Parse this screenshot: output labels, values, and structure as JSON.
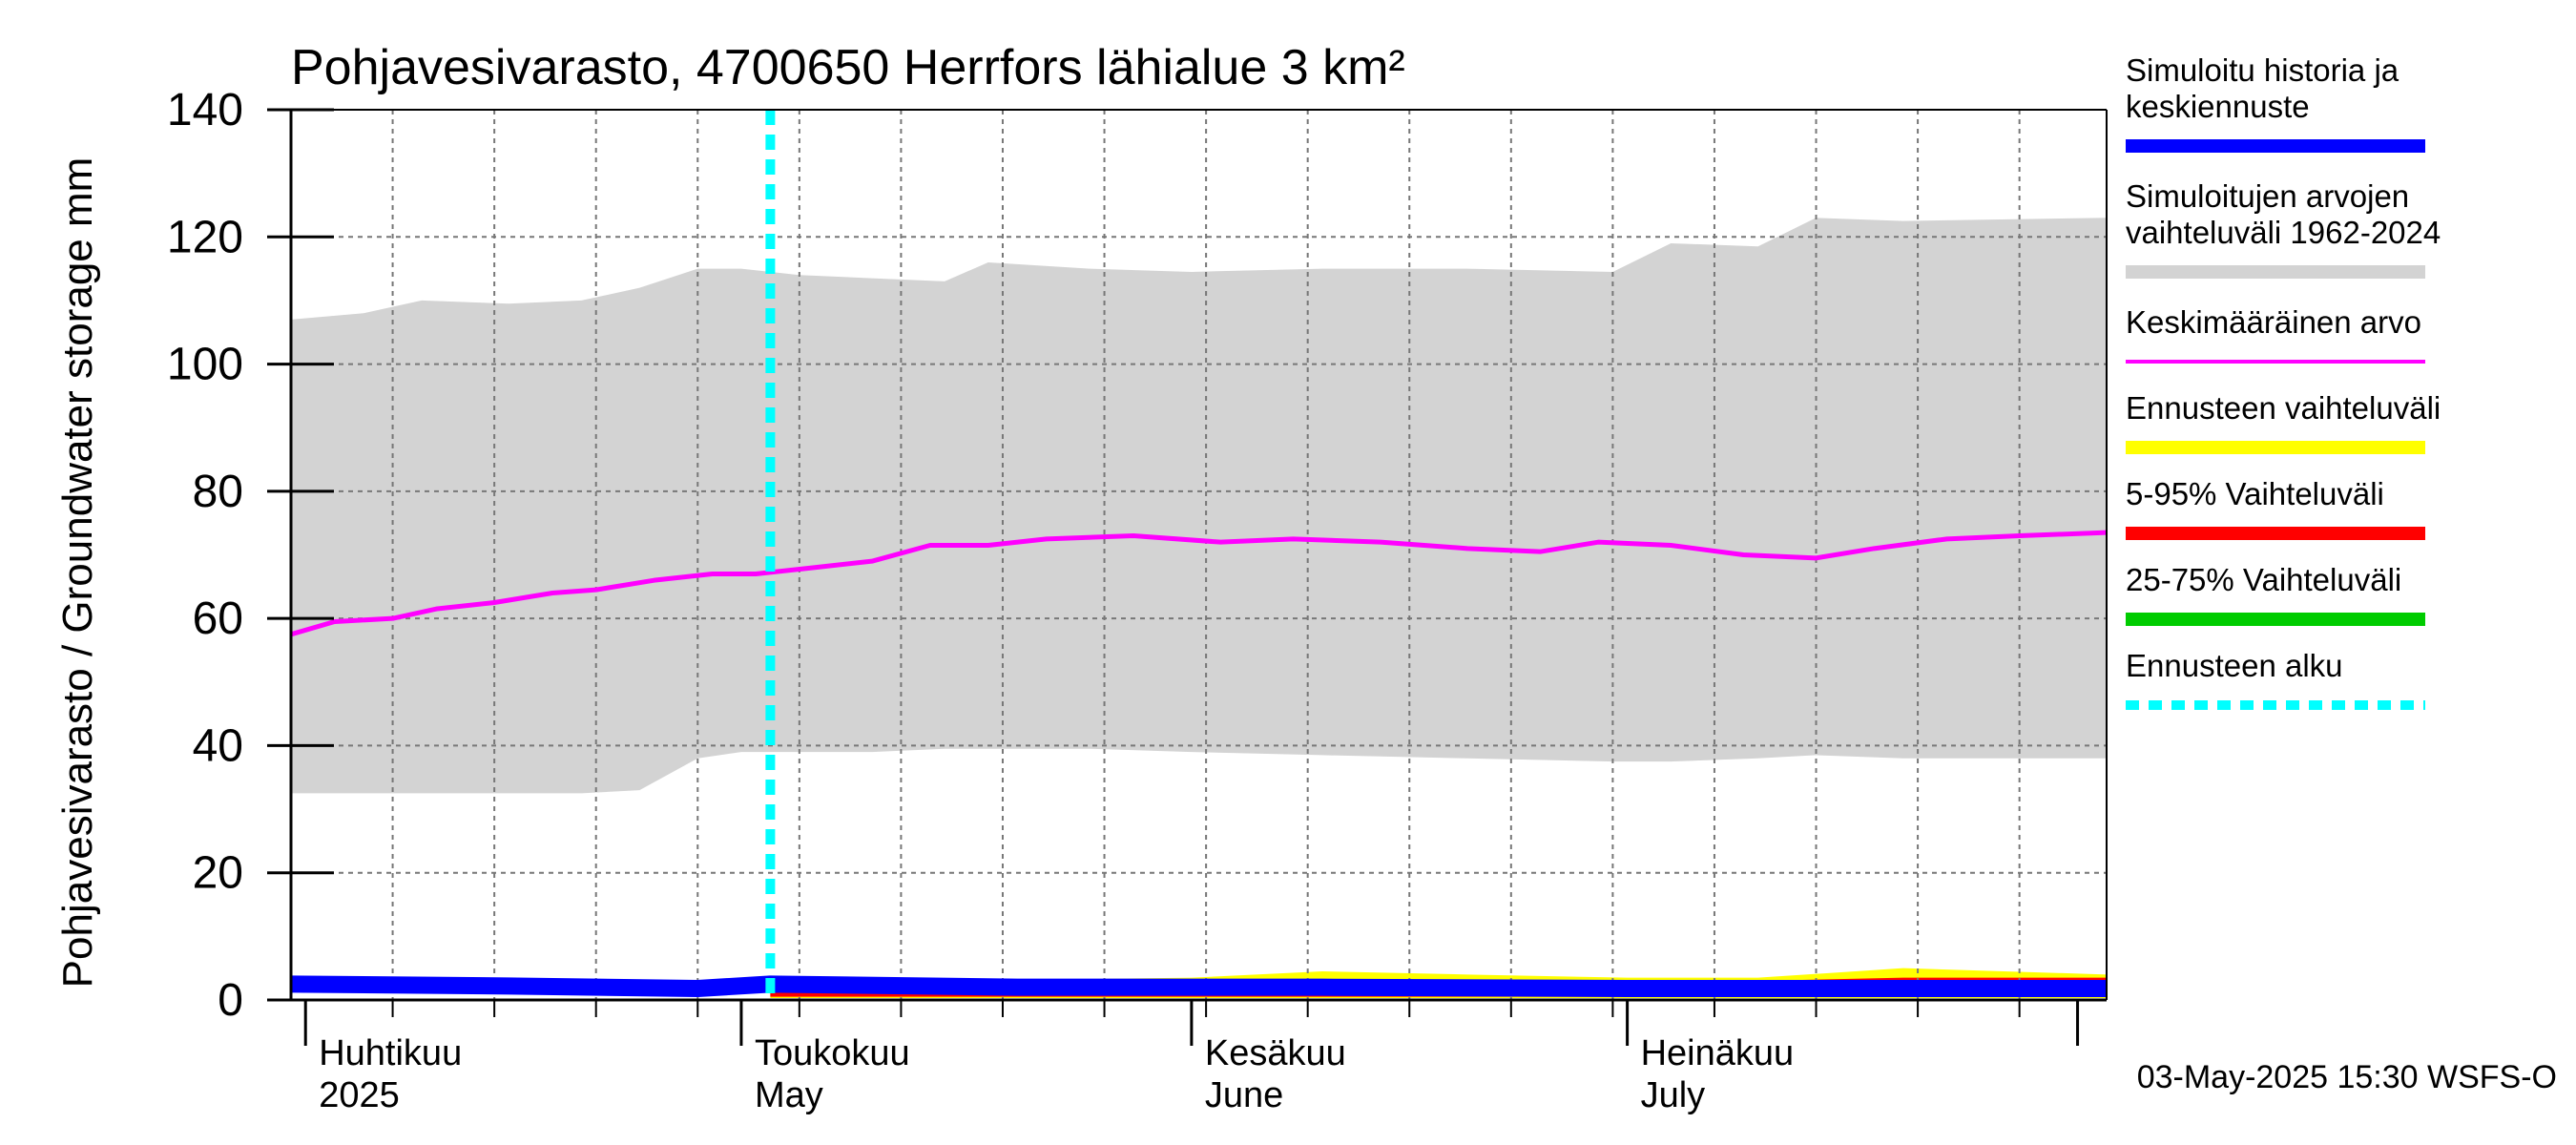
{
  "chart_data": {
    "type": "area",
    "title": "Pohjavesivarasto, 4700650 Herrfors lähialue 3 km²",
    "ylabel": "Pohjavesivarasto / Groundwater storage   mm",
    "ylim": [
      0,
      140
    ],
    "yticks": [
      0,
      20,
      40,
      60,
      80,
      100,
      120,
      140
    ],
    "xlim": [
      "2025-03-31",
      "2025-08-03"
    ],
    "grid": true,
    "legend_position": "right",
    "month_labels": [
      {
        "date": "2025-04-01",
        "fi": "Huhtikuu",
        "en": "2025"
      },
      {
        "date": "2025-05-01",
        "fi": "Toukokuu",
        "en": "May"
      },
      {
        "date": "2025-06-01",
        "fi": "Kesäkuu",
        "en": "June"
      },
      {
        "date": "2025-07-01",
        "fi": "Heinäkuu",
        "en": "July"
      }
    ],
    "forecast_start": "2025-05-03",
    "timestamp": "03-May-2025 15:30 WSFS-O",
    "series": [
      {
        "name": "Simuloitujen arvojen vaihteluväli 1962-2024",
        "color": "#d3d3d3",
        "kind": "band",
        "x": [
          "2025-03-31",
          "2025-04-05",
          "2025-04-09",
          "2025-04-15",
          "2025-04-20",
          "2025-04-24",
          "2025-04-28",
          "2025-05-01",
          "2025-05-05",
          "2025-05-10",
          "2025-05-15",
          "2025-05-18",
          "2025-05-25",
          "2025-06-01",
          "2025-06-10",
          "2025-06-20",
          "2025-06-30",
          "2025-07-04",
          "2025-07-10",
          "2025-07-14",
          "2025-07-20",
          "2025-08-03"
        ],
        "upper": [
          107,
          108,
          110,
          109.5,
          110,
          112,
          115,
          115,
          114,
          113.5,
          113,
          116,
          115,
          114.5,
          115,
          115,
          114.5,
          119,
          118.5,
          123,
          122.5,
          123
        ],
        "lower": [
          32.5,
          32.5,
          32.5,
          32.5,
          32.5,
          33,
          38,
          39,
          39,
          39,
          39.5,
          39.5,
          39.5,
          39,
          38.5,
          38,
          37.5,
          37.5,
          38,
          38.5,
          38,
          38
        ]
      },
      {
        "name": "Keskimääräinen arvo",
        "color": "#ff00ff",
        "kind": "line",
        "x": [
          "2025-03-31",
          "2025-04-03",
          "2025-04-07",
          "2025-04-10",
          "2025-04-14",
          "2025-04-18",
          "2025-04-21",
          "2025-04-25",
          "2025-04-29",
          "2025-05-02",
          "2025-05-06",
          "2025-05-10",
          "2025-05-14",
          "2025-05-18",
          "2025-05-22",
          "2025-05-28",
          "2025-06-03",
          "2025-06-08",
          "2025-06-14",
          "2025-06-20",
          "2025-06-25",
          "2025-06-29",
          "2025-07-04",
          "2025-07-09",
          "2025-07-14",
          "2025-07-18",
          "2025-07-23",
          "2025-07-28",
          "2025-08-03"
        ],
        "y": [
          57.5,
          59.5,
          60,
          61.5,
          62.5,
          64,
          64.5,
          66,
          67,
          67,
          68,
          69,
          71.5,
          71.5,
          72.5,
          73,
          72,
          72.5,
          72,
          71,
          70.5,
          72,
          71.5,
          70,
          69.5,
          71,
          72.5,
          73,
          73.5
        ]
      },
      {
        "name": "Ennusteen vaihteluväli",
        "color": "#ffff00",
        "kind": "band",
        "x": [
          "2025-05-03",
          "2025-05-15",
          "2025-06-01",
          "2025-06-10",
          "2025-06-20",
          "2025-07-01",
          "2025-07-10",
          "2025-07-20",
          "2025-08-03"
        ],
        "upper": [
          2.5,
          3,
          3.5,
          4.5,
          4,
          3.5,
          3.5,
          5,
          4
        ],
        "lower": [
          0.3,
          0.3,
          0.3,
          0.3,
          0.3,
          0.3,
          0.3,
          0.3,
          0.3
        ]
      },
      {
        "name": "5-95% Vaihteluväli",
        "color": "#ff0000",
        "kind": "band",
        "x": [
          "2025-05-03",
          "2025-05-15",
          "2025-06-01",
          "2025-06-10",
          "2025-06-20",
          "2025-07-01",
          "2025-07-10",
          "2025-07-20",
          "2025-08-03"
        ],
        "upper": [
          2.5,
          2.6,
          2.8,
          3.2,
          3,
          2.8,
          3,
          3.5,
          3.5
        ],
        "lower": [
          0.5,
          0.5,
          0.5,
          0.5,
          0.5,
          0.5,
          0.5,
          0.5,
          0.5
        ]
      },
      {
        "name": "25-75% Vaihteluväli",
        "color": "#00cc00",
        "kind": "band",
        "x": [
          "2025-05-03",
          "2025-06-01",
          "2025-07-01",
          "2025-08-03"
        ],
        "upper": [
          2.4,
          2.5,
          2.5,
          2.6
        ],
        "lower": [
          1.2,
          1.2,
          1.2,
          1.2
        ]
      },
      {
        "name": "Simuloitu historia ja keskiennuste",
        "color": "#0000ff",
        "kind": "line",
        "x": [
          "2025-03-31",
          "2025-04-15",
          "2025-04-28",
          "2025-05-03",
          "2025-05-20",
          "2025-06-10",
          "2025-07-01",
          "2025-07-20",
          "2025-08-03"
        ],
        "y": [
          2.5,
          2.2,
          1.8,
          2.5,
          2,
          2,
          1.8,
          1.8,
          1.8
        ]
      }
    ],
    "legend": [
      {
        "lines": [
          "Simuloitu historia ja",
          "keskiennuste"
        ],
        "color": "#0000ff",
        "style": "solid"
      },
      {
        "lines": [
          "Simuloitujen arvojen",
          "vaihteluväli 1962-2024"
        ],
        "color": "#d3d3d3",
        "style": "solid"
      },
      {
        "lines": [
          "Keskimääräinen arvo"
        ],
        "color": "#ff00ff",
        "style": "thin"
      },
      {
        "lines": [
          "Ennusteen vaihteluväli"
        ],
        "color": "#ffff00",
        "style": "solid"
      },
      {
        "lines": [
          "5-95% Vaihteluväli"
        ],
        "color": "#ff0000",
        "style": "solid"
      },
      {
        "lines": [
          "25-75% Vaihteluväli"
        ],
        "color": "#00cc00",
        "style": "solid"
      },
      {
        "lines": [
          "Ennusteen alku"
        ],
        "color": "#00ffff",
        "style": "dashed"
      }
    ]
  }
}
